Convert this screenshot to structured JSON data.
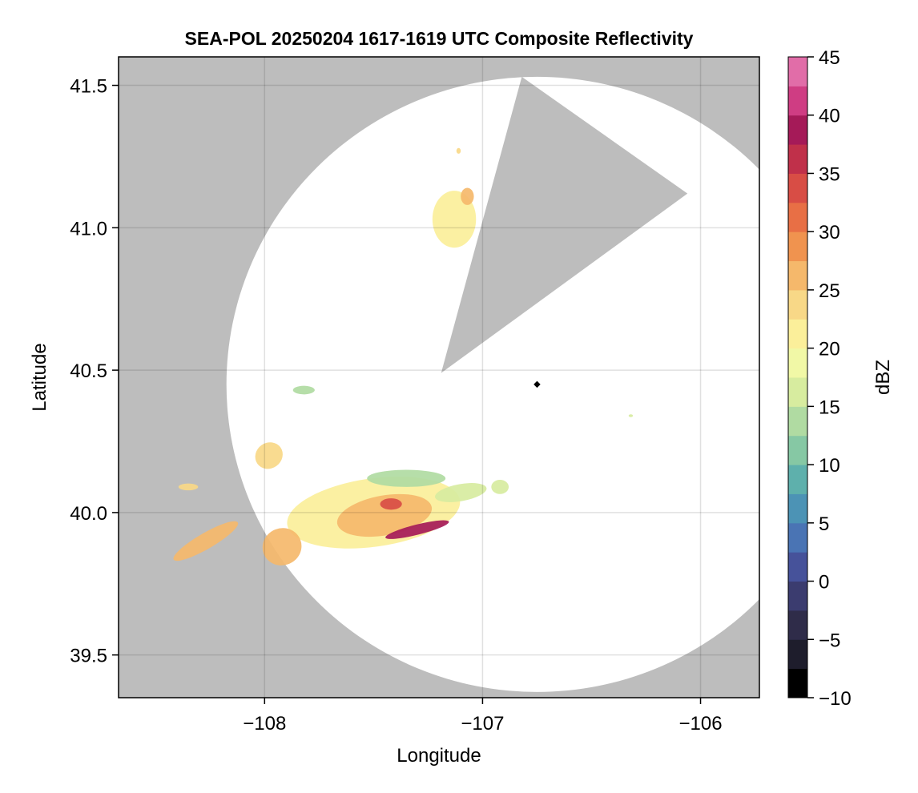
{
  "chart_data": {
    "type": "heatmap",
    "title": "SEA-POL 20250204 1617-1619 UTC Composite Reflectivity",
    "xlabel": "Longitude",
    "ylabel": "Latitude",
    "xlim": [
      -108.67,
      -105.73
    ],
    "ylim": [
      39.35,
      41.6
    ],
    "xticks": [
      -108,
      -107,
      -106
    ],
    "xtick_labels": [
      "−108",
      "−107",
      "−106"
    ],
    "yticks": [
      39.5,
      40.0,
      40.5,
      41.0,
      41.5
    ],
    "ytick_labels": [
      "39.5",
      "40.0",
      "40.5",
      "41.0",
      "41.5"
    ],
    "grid": true,
    "background_color": "#bdbdbd",
    "radar_site": {
      "lon": -106.75,
      "lat": 40.45
    },
    "coverage_radius_deg_lon": 1.425,
    "coverage_radius_deg_lat": 1.08,
    "blocked_sector": [
      {
        "lon": -107.19,
        "lat": 40.49
      },
      {
        "lon": -106.82,
        "lat": 41.53
      },
      {
        "lon": -106.06,
        "lat": 41.12
      }
    ],
    "colorbar": {
      "label": "dBZ",
      "min": -10,
      "max": 45,
      "step": 2.5,
      "ticks": [
        -10,
        -5,
        0,
        5,
        10,
        15,
        20,
        25,
        30,
        35,
        40,
        45
      ],
      "tick_labels": [
        "−10",
        "−5",
        "0",
        "5",
        "10",
        "15",
        "20",
        "25",
        "30",
        "35",
        "40",
        "45"
      ],
      "colormap": [
        "#000000",
        "#1e1d2c",
        "#2f2c49",
        "#3b3c6f",
        "#46529a",
        "#4a74b4",
        "#4c93b5",
        "#5eb0ac",
        "#86c8a4",
        "#b0dba2",
        "#d7ec9f",
        "#f1f8a6",
        "#fbef9a",
        "#f8d887",
        "#f5b86b",
        "#f0934f",
        "#e86f45",
        "#d84d45",
        "#c0304a",
        "#a51a58",
        "#cf3d83",
        "#e16da8",
        "#e79cc7",
        "#c68cc1",
        "#9a5aa3",
        "#6a2a7d",
        "#3e0a52"
      ]
    },
    "echoes": [
      {
        "name": "main-band",
        "lon": -107.5,
        "lat": 40.0,
        "rx": 0.4,
        "ry": 0.12,
        "rot": -8,
        "dbz": 21
      },
      {
        "name": "main-core",
        "lon": -107.45,
        "lat": 39.99,
        "rx": 0.22,
        "ry": 0.07,
        "rot": -10,
        "dbz": 26
      },
      {
        "name": "main-intense-line",
        "lon": -107.3,
        "lat": 39.94,
        "rx": 0.15,
        "ry": 0.018,
        "rot": -14,
        "dbz": 39
      },
      {
        "name": "main-peak",
        "lon": -107.42,
        "lat": 40.03,
        "rx": 0.05,
        "ry": 0.02,
        "rot": 0,
        "dbz": 33
      },
      {
        "name": "northern-edge",
        "lon": -107.35,
        "lat": 40.12,
        "rx": 0.18,
        "ry": 0.03,
        "rot": 0,
        "dbz": 13
      },
      {
        "name": "eastern-tail",
        "lon": -107.1,
        "lat": 40.07,
        "rx": 0.12,
        "ry": 0.03,
        "rot": -10,
        "dbz": 17
      },
      {
        "name": "western-blob",
        "lon": -107.92,
        "lat": 39.88,
        "rx": 0.09,
        "ry": 0.065,
        "rot": -20,
        "dbz": 25
      },
      {
        "name": "southwest-streak",
        "lon": -108.27,
        "lat": 39.9,
        "rx": 0.17,
        "ry": 0.028,
        "rot": -30,
        "dbz": 25
      },
      {
        "name": "northwest-cell",
        "lon": -107.98,
        "lat": 40.2,
        "rx": 0.065,
        "ry": 0.045,
        "rot": -35,
        "dbz": 24
      },
      {
        "name": "far-west-cell",
        "lon": -108.35,
        "lat": 40.09,
        "rx": 0.045,
        "ry": 0.012,
        "rot": 0,
        "dbz": 24
      },
      {
        "name": "north-cell",
        "lon": -107.13,
        "lat": 41.03,
        "rx": 0.1,
        "ry": 0.1,
        "rot": 0,
        "dbz": 20
      },
      {
        "name": "north-cell-edge",
        "lon": -107.07,
        "lat": 41.11,
        "rx": 0.03,
        "ry": 0.03,
        "rot": 0,
        "dbz": 26
      },
      {
        "name": "mid-speck",
        "lon": -107.82,
        "lat": 40.43,
        "rx": 0.05,
        "ry": 0.015,
        "rot": 0,
        "dbz": 14
      },
      {
        "name": "east-speck",
        "lon": -106.92,
        "lat": 40.09,
        "rx": 0.04,
        "ry": 0.025,
        "rot": 0,
        "dbz": 16
      },
      {
        "name": "far-east-speck",
        "lon": -106.32,
        "lat": 40.34,
        "rx": 0.01,
        "ry": 0.005,
        "rot": 0,
        "dbz": 16
      },
      {
        "name": "lone-pixel",
        "lon": -107.11,
        "lat": 41.27,
        "rx": 0.01,
        "ry": 0.01,
        "rot": 0,
        "dbz": 24
      }
    ]
  }
}
